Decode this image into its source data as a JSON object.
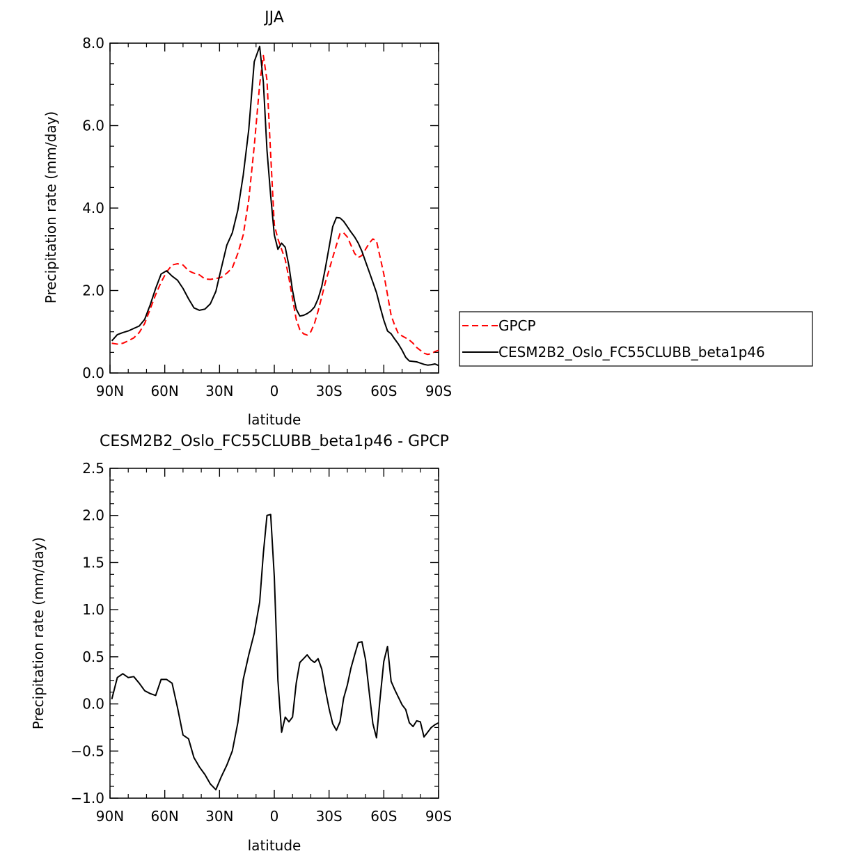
{
  "chart_data": [
    {
      "type": "line",
      "title": "JJA",
      "xlabel": "latitude",
      "ylabel": "Precipitation rate (mm/day)",
      "xlim": [
        -90,
        90
      ],
      "ylim": [
        0,
        8
      ],
      "xticks": [
        {
          "value": -90,
          "label": "90N"
        },
        {
          "value": -60,
          "label": "60N"
        },
        {
          "value": -30,
          "label": "30N"
        },
        {
          "value": 0,
          "label": "0"
        },
        {
          "value": 30,
          "label": "30S"
        },
        {
          "value": 60,
          "label": "60S"
        },
        {
          "value": 90,
          "label": "90S"
        }
      ],
      "yticks": [
        {
          "value": 0,
          "label": "0.0"
        },
        {
          "value": 2,
          "label": "2.0"
        },
        {
          "value": 4,
          "label": "4.0"
        },
        {
          "value": 6,
          "label": "6.0"
        },
        {
          "value": 8,
          "label": "8.0"
        }
      ],
      "legend": {
        "placement": "right"
      },
      "series": [
        {
          "name": "GPCP",
          "color": "#ff0000",
          "dash": true,
          "x": [
            -89,
            -86,
            -83,
            -80,
            -77,
            -74,
            -71,
            -68,
            -65,
            -62,
            -59,
            -56,
            -53,
            -50,
            -47,
            -44,
            -41,
            -38,
            -35,
            -32,
            -29,
            -26,
            -23,
            -20,
            -17,
            -14,
            -11,
            -8,
            -6,
            -4,
            -2,
            0,
            2,
            4,
            6,
            8,
            10,
            12,
            14,
            16,
            18,
            20,
            22,
            24,
            26,
            28,
            30,
            32,
            34,
            36,
            38,
            40,
            42,
            44,
            46,
            48,
            50,
            52,
            54,
            56,
            58,
            60,
            62,
            64,
            66,
            68,
            70,
            72,
            74,
            76,
            78,
            80,
            82,
            84,
            86,
            88,
            90
          ],
          "y": [
            0.72,
            0.7,
            0.72,
            0.78,
            0.85,
            0.98,
            1.2,
            1.55,
            1.9,
            2.2,
            2.45,
            2.62,
            2.65,
            2.62,
            2.48,
            2.42,
            2.38,
            2.28,
            2.27,
            2.29,
            2.32,
            2.42,
            2.55,
            2.9,
            3.35,
            4.2,
            5.5,
            7.0,
            7.7,
            7.1,
            5.3,
            3.6,
            3.25,
            3.0,
            2.75,
            2.3,
            1.8,
            1.3,
            1.05,
            0.95,
            0.92,
            1.0,
            1.2,
            1.5,
            1.85,
            2.2,
            2.5,
            2.8,
            3.1,
            3.38,
            3.4,
            3.3,
            3.1,
            2.9,
            2.8,
            2.85,
            3.0,
            3.15,
            3.25,
            3.2,
            2.8,
            2.4,
            1.9,
            1.4,
            1.15,
            0.95,
            0.9,
            0.85,
            0.8,
            0.72,
            0.62,
            0.55,
            0.48,
            0.45,
            0.47,
            0.52,
            0.55
          ]
        },
        {
          "name": "CESM2B2_Oslo_FC55CLUBB_beta1p46",
          "color": "#000000",
          "dash": false,
          "x": [
            -89,
            -86,
            -83,
            -80,
            -77,
            -74,
            -71,
            -68,
            -65,
            -62,
            -59,
            -56,
            -53,
            -50,
            -47,
            -44,
            -41,
            -38,
            -35,
            -32,
            -29,
            -26,
            -23,
            -20,
            -17,
            -14,
            -11,
            -8,
            -6,
            -4,
            -2,
            0,
            2,
            4,
            6,
            8,
            10,
            12,
            14,
            16,
            18,
            20,
            22,
            24,
            26,
            28,
            30,
            32,
            34,
            36,
            38,
            40,
            42,
            44,
            46,
            48,
            50,
            52,
            54,
            56,
            58,
            60,
            62,
            64,
            66,
            68,
            70,
            72,
            74,
            76,
            78,
            80,
            82,
            84,
            86,
            88,
            90
          ],
          "y": [
            0.78,
            0.93,
            0.98,
            1.02,
            1.08,
            1.14,
            1.3,
            1.65,
            2.05,
            2.4,
            2.48,
            2.35,
            2.25,
            2.05,
            1.8,
            1.58,
            1.52,
            1.55,
            1.68,
            1.98,
            2.55,
            3.1,
            3.4,
            3.95,
            4.8,
            5.9,
            7.55,
            7.92,
            7.05,
            5.4,
            4.3,
            3.35,
            3.0,
            3.15,
            3.05,
            2.6,
            2.0,
            1.55,
            1.38,
            1.4,
            1.44,
            1.5,
            1.6,
            1.8,
            2.1,
            2.55,
            3.05,
            3.55,
            3.77,
            3.76,
            3.68,
            3.55,
            3.42,
            3.3,
            3.15,
            2.95,
            2.7,
            2.45,
            2.2,
            1.95,
            1.6,
            1.28,
            1.02,
            0.95,
            0.82,
            0.7,
            0.55,
            0.38,
            0.29,
            0.28,
            0.27,
            0.24,
            0.21,
            0.19,
            0.2,
            0.22,
            0.18
          ]
        }
      ]
    },
    {
      "type": "line",
      "title": "CESM2B2_Oslo_FC55CLUBB_beta1p46 - GPCP",
      "xlabel": "latitude",
      "ylabel": "Precipitation rate (mm/day)",
      "xlim": [
        -90,
        90
      ],
      "ylim": [
        -1.0,
        2.5
      ],
      "xticks": [
        {
          "value": -90,
          "label": "90N"
        },
        {
          "value": -60,
          "label": "60N"
        },
        {
          "value": -30,
          "label": "30N"
        },
        {
          "value": 0,
          "label": "0"
        },
        {
          "value": 30,
          "label": "30S"
        },
        {
          "value": 60,
          "label": "60S"
        },
        {
          "value": 90,
          "label": "90S"
        }
      ],
      "yticks": [
        {
          "value": -1.0,
          "label": "−1.0"
        },
        {
          "value": -0.5,
          "label": "−0.5"
        },
        {
          "value": 0.0,
          "label": "0.0"
        },
        {
          "value": 0.5,
          "label": "0.5"
        },
        {
          "value": 1.0,
          "label": "1.0"
        },
        {
          "value": 1.5,
          "label": "1.5"
        },
        {
          "value": 2.0,
          "label": "2.0"
        },
        {
          "value": 2.5,
          "label": "2.5"
        }
      ],
      "series": [
        {
          "color": "#000000",
          "dash": false,
          "x": [
            -89,
            -86,
            -83,
            -80,
            -77,
            -74,
            -71,
            -68,
            -65,
            -62,
            -59,
            -56,
            -53,
            -50,
            -47,
            -44,
            -41,
            -38,
            -35,
            -32,
            -29,
            -26,
            -23,
            -20,
            -17,
            -14,
            -11,
            -8,
            -6,
            -4,
            -2,
            0,
            2,
            4,
            6,
            8,
            10,
            12,
            14,
            16,
            18,
            20,
            22,
            24,
            26,
            28,
            30,
            32,
            34,
            36,
            38,
            40,
            42,
            44,
            46,
            48,
            50,
            52,
            54,
            56,
            58,
            60,
            62,
            64,
            66,
            68,
            70,
            72,
            74,
            76,
            78,
            80,
            82,
            84,
            86,
            88,
            90
          ],
          "y": [
            0.05,
            0.28,
            0.32,
            0.28,
            0.29,
            0.22,
            0.14,
            0.11,
            0.09,
            0.26,
            0.26,
            0.22,
            -0.04,
            -0.33,
            -0.37,
            -0.57,
            -0.67,
            -0.75,
            -0.85,
            -0.91,
            -0.77,
            -0.65,
            -0.5,
            -0.2,
            0.26,
            0.52,
            0.75,
            1.08,
            1.6,
            2.0,
            2.01,
            1.35,
            0.25,
            -0.3,
            -0.14,
            -0.19,
            -0.14,
            0.22,
            0.44,
            0.48,
            0.52,
            0.47,
            0.44,
            0.48,
            0.37,
            0.15,
            -0.05,
            -0.21,
            -0.28,
            -0.19,
            0.06,
            0.2,
            0.38,
            0.52,
            0.65,
            0.66,
            0.47,
            0.12,
            -0.21,
            -0.36,
            0.07,
            0.45,
            0.61,
            0.24,
            0.15,
            0.07,
            -0.01,
            -0.06,
            -0.2,
            -0.24,
            -0.18,
            -0.19,
            -0.35,
            -0.3,
            -0.25,
            -0.22,
            -0.2
          ]
        }
      ]
    }
  ]
}
